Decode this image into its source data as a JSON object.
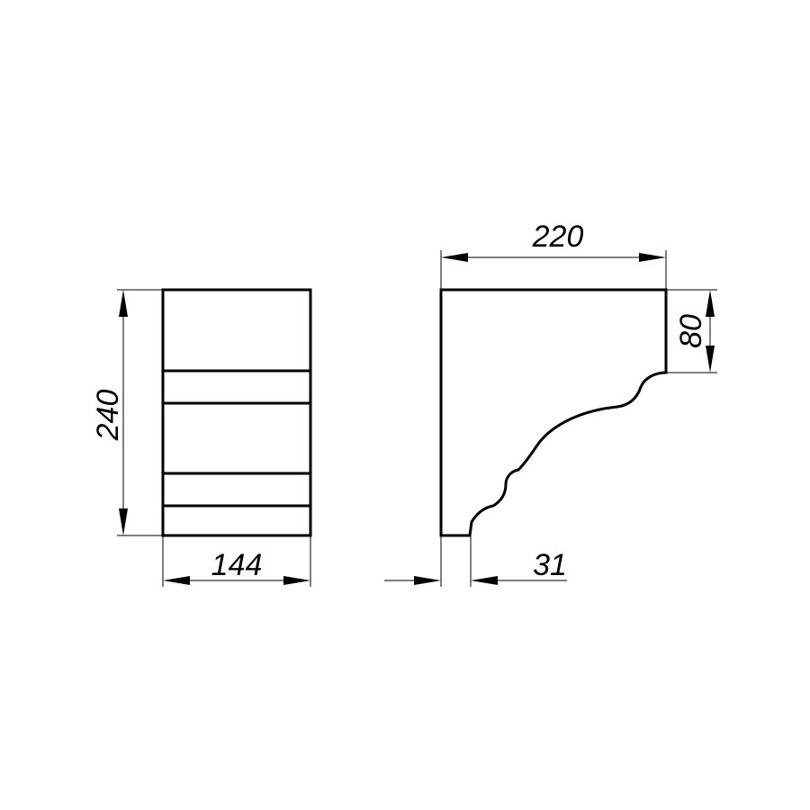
{
  "front_view": {
    "height_label": "240",
    "width_label": "144"
  },
  "side_view": {
    "depth_label": "220",
    "top_height_label": "80",
    "base_offset_label": "31"
  },
  "colors": {
    "line": "#000000",
    "background": "#ffffff"
  }
}
